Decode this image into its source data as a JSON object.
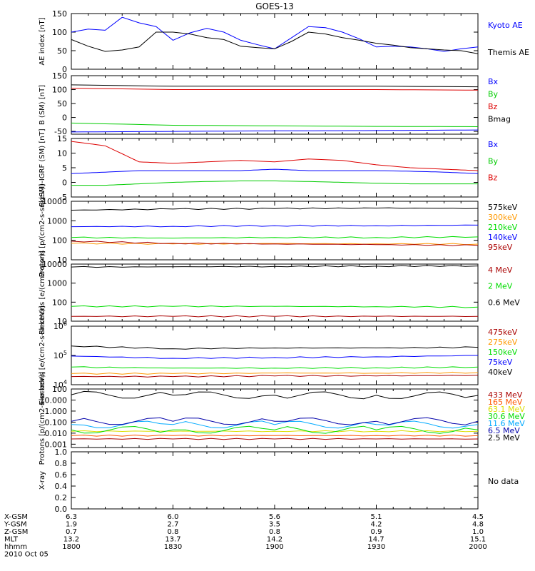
{
  "chart_data": [
    {
      "type": "line",
      "title": "GOES-13",
      "ylabel": "AE index [nT]",
      "ylim": [
        0,
        150
      ],
      "yticks": [
        "0",
        "50",
        "100",
        "150"
      ],
      "x": [
        1800,
        1805,
        1810,
        1815,
        1820,
        1825,
        1830,
        1835,
        1840,
        1845,
        1850,
        1855,
        1900,
        1905,
        1910,
        1915,
        1920,
        1925,
        1930,
        1935,
        1940,
        1945,
        1950,
        1955,
        2000
      ],
      "series": [
        {
          "name": "Kyoto AE",
          "color": "#0000ff",
          "values": [
            100,
            108,
            105,
            140,
            125,
            115,
            78,
            98,
            110,
            100,
            78,
            66,
            55,
            85,
            115,
            112,
            100,
            82,
            60,
            62,
            60,
            55,
            48,
            55,
            60
          ]
        },
        {
          "name": "Themis AE",
          "color": "#000000",
          "values": [
            80,
            62,
            48,
            52,
            60,
            100,
            100,
            95,
            85,
            80,
            62,
            58,
            55,
            75,
            100,
            95,
            85,
            78,
            70,
            65,
            58,
            55,
            52,
            50,
            42
          ]
        }
      ]
    },
    {
      "type": "line",
      "ylabel": "B (SM) [nT]",
      "ylim": [
        -60,
        150
      ],
      "yticks": [
        "-50",
        "0",
        "50",
        "100",
        "150"
      ],
      "x": [
        1800,
        1830,
        1900,
        1930,
        2000
      ],
      "series": [
        {
          "name": "Bx",
          "color": "#0000ff",
          "values": [
            -52,
            -50,
            -48,
            -47,
            -45
          ]
        },
        {
          "name": "By",
          "color": "#00cc00",
          "values": [
            -20,
            -28,
            -30,
            -32,
            -33
          ]
        },
        {
          "name": "Bz",
          "color": "#dd0000",
          "values": [
            105,
            100,
            100,
            100,
            98
          ]
        },
        {
          "name": "Bmag",
          "color": "#000000",
          "values": [
            117,
            112,
            112,
            112,
            110
          ]
        }
      ]
    },
    {
      "type": "line",
      "ylabel": "B (SM)-IGRF (SM) [nT]",
      "ylim": [
        -5,
        15
      ],
      "yticks": [
        "-5",
        "0",
        "5",
        "10",
        "15"
      ],
      "x": [
        1800,
        1810,
        1820,
        1830,
        1840,
        1850,
        1900,
        1910,
        1920,
        1930,
        1940,
        1950,
        2000
      ],
      "series": [
        {
          "name": "Bx",
          "color": "#0000ff",
          "values": [
            3,
            3.5,
            4,
            4,
            4,
            4,
            4.5,
            4,
            4,
            4,
            3.8,
            3.5,
            3
          ]
        },
        {
          "name": "By",
          "color": "#00cc00",
          "values": [
            -1,
            -1,
            -0.5,
            0,
            0.3,
            0.5,
            0.5,
            0.3,
            0,
            -0.3,
            -0.5,
            -0.5,
            -0.5
          ]
        },
        {
          "name": "Bz",
          "color": "#dd0000",
          "values": [
            14,
            12.5,
            7,
            6.5,
            7,
            7.5,
            7,
            8,
            7.5,
            6,
            5,
            4.5,
            4
          ]
        }
      ]
    },
    {
      "type": "line",
      "ylabel": "Protons [p/(cm2-s-sr-keV)]",
      "yscale": "log",
      "ylim": [
        10,
        10000
      ],
      "yticks": [
        "10",
        "100",
        "1000",
        "10000"
      ],
      "x": [
        1800,
        1830,
        1900,
        1930,
        2000
      ],
      "series": [
        {
          "name": "575keV",
          "color": "#000000",
          "values": [
            3500,
            4000,
            4200,
            4500,
            4300
          ]
        },
        {
          "name": "300keV",
          "color": "#ff9900",
          "values": [
            70,
            65,
            68,
            66,
            64
          ]
        },
        {
          "name": "210keV",
          "color": "#00dd00",
          "values": [
            140,
            130,
            140,
            140,
            150
          ]
        },
        {
          "name": "140keV",
          "color": "#0000ff",
          "values": [
            500,
            520,
            560,
            560,
            600
          ]
        },
        {
          "name": "95keV",
          "color": "#aa0000",
          "values": [
            90,
            70,
            65,
            60,
            55
          ]
        }
      ]
    },
    {
      "type": "line",
      "ylabel": "Electrons [e/(cm2-s-sr)]",
      "yscale": "log",
      "ylim": [
        10,
        10000
      ],
      "yticks": [
        "10",
        "100",
        "1000",
        "10000"
      ],
      "x": [
        1800,
        1830,
        1900,
        1930,
        2000
      ],
      "series": [
        {
          "name": "4 MeV",
          "color": "#aa0000",
          "values": [
            18,
            18,
            18,
            18,
            18
          ]
        },
        {
          "name": "2 MeV",
          "color": "#00dd00",
          "values": [
            60,
            60,
            60,
            58,
            55
          ]
        },
        {
          "name": "0.6 MeV",
          "color": "#000000",
          "values": [
            7000,
            7200,
            7500,
            7800,
            8000
          ]
        }
      ]
    },
    {
      "type": "line",
      "ylabel": "Electrons [e/(cm2-s-sr-keV)]",
      "yscale": "log",
      "ylim": [
        10000,
        1000000
      ],
      "yticks": [
        "10^4",
        "10^5",
        "10^6"
      ],
      "x": [
        1800,
        1830,
        1900,
        1930,
        2000
      ],
      "series": [
        {
          "name": "475keV",
          "color": "#aa0000",
          "values": [
            19000,
            19000,
            20000,
            20000,
            21000
          ]
        },
        {
          "name": "275keV",
          "color": "#ff9900",
          "values": [
            24000,
            24000,
            25000,
            25000,
            26000
          ]
        },
        {
          "name": "150keV",
          "color": "#00dd00",
          "values": [
            40000,
            37000,
            37000,
            38000,
            40000
          ]
        },
        {
          "name": "75keV",
          "color": "#0000ff",
          "values": [
            95000,
            80000,
            85000,
            90000,
            100000
          ]
        },
        {
          "name": "40keV",
          "color": "#000000",
          "values": [
            210000,
            170000,
            180000,
            180000,
            190000
          ]
        }
      ]
    },
    {
      "type": "line",
      "ylabel": "Protons [p/(cm2-s-sr-keV)]",
      "yscale": "log",
      "ylim": [
        0.0005,
        100
      ],
      "yticks": [
        "0.001",
        "0.010",
        "0.100",
        "1.000",
        "10.000",
        "100"
      ],
      "x": [
        1800,
        1830,
        1900,
        1930,
        2000
      ],
      "series": [
        {
          "name": "433 MeV",
          "color": "#aa0000",
          "values": [
            0.003,
            0.003,
            0.003,
            0.003,
            0.003
          ]
        },
        {
          "name": "165 MeV",
          "color": "#ff5500",
          "values": [
            0.006,
            0.006,
            0.006,
            0.006,
            0.006
          ]
        },
        {
          "name": "63.1 MeV",
          "color": "#dddd00",
          "values": [
            0.015,
            0.015,
            0.015,
            0.015,
            0.015
          ]
        },
        {
          "name": "30.6 MeV",
          "color": "#00dd00",
          "values": [
            0.02,
            0.02,
            0.02,
            0.02,
            0.02
          ]
        },
        {
          "name": "11.6 MeV",
          "color": "#00aaff",
          "values": [
            0.06,
            0.06,
            0.06,
            0.06,
            0.06
          ]
        },
        {
          "name": "6.5 MeV",
          "color": "#0000aa",
          "values": [
            0.12,
            0.12,
            0.12,
            0.12,
            0.12
          ]
        },
        {
          "name": "2.5 MeV",
          "color": "#000000",
          "values": [
            30,
            28,
            28,
            27,
            26
          ]
        }
      ]
    },
    {
      "type": "line",
      "ylabel": "X-ray",
      "ylim": [
        0,
        1
      ],
      "yticks": [
        "0.0",
        "0.2",
        "0.4",
        "0.6",
        "0.8",
        "1.0"
      ],
      "x": [],
      "series": [],
      "annotation": "No data"
    }
  ],
  "footer": {
    "rows": [
      {
        "label": "X-GSM",
        "values": [
          "6.3",
          "6.0",
          "5.6",
          "5.1",
          "4.5"
        ]
      },
      {
        "label": "Y-GSM",
        "values": [
          "1.9",
          "2.7",
          "3.5",
          "4.2",
          "4.8"
        ]
      },
      {
        "label": "Z-GSM",
        "values": [
          "0.7",
          "0.8",
          "0.8",
          "0.9",
          "1.0"
        ]
      },
      {
        "label": "MLT",
        "values": [
          "13.2",
          "13.7",
          "14.2",
          "14.7",
          "15.1"
        ]
      },
      {
        "label": "hhmm",
        "values": [
          "1800",
          "1830",
          "1900",
          "1930",
          "2000"
        ]
      }
    ],
    "date": "2010 Oct 05"
  }
}
